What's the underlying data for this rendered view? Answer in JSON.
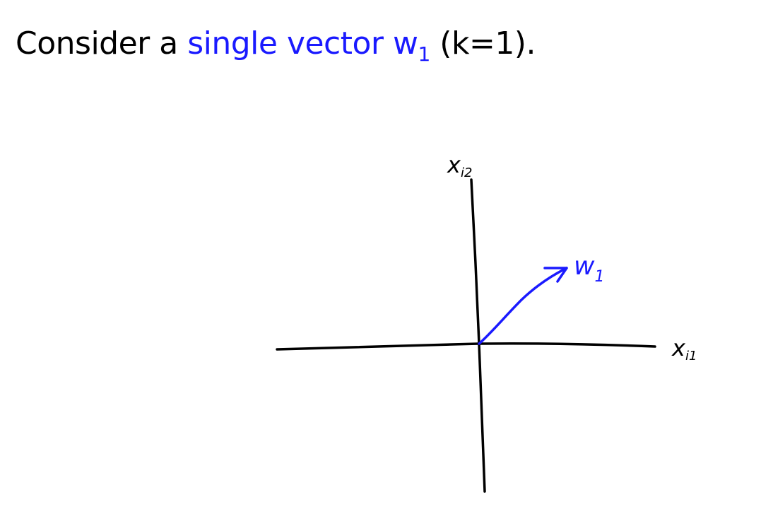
{
  "title": {
    "prefix": "Consider a ",
    "highlight": "single vector w",
    "highlight_subscript": "1",
    "suffix": " (k=1)."
  },
  "diagram": {
    "x_axis_label": "x",
    "x_axis_subscript": "i1",
    "y_axis_label": "x",
    "y_axis_subscript": "i2",
    "vector_label": "w",
    "vector_subscript": "1"
  },
  "colors": {
    "text": "#000000",
    "highlight": "#1a1aff",
    "axes": "#000000",
    "vector": "#1a1aff"
  }
}
